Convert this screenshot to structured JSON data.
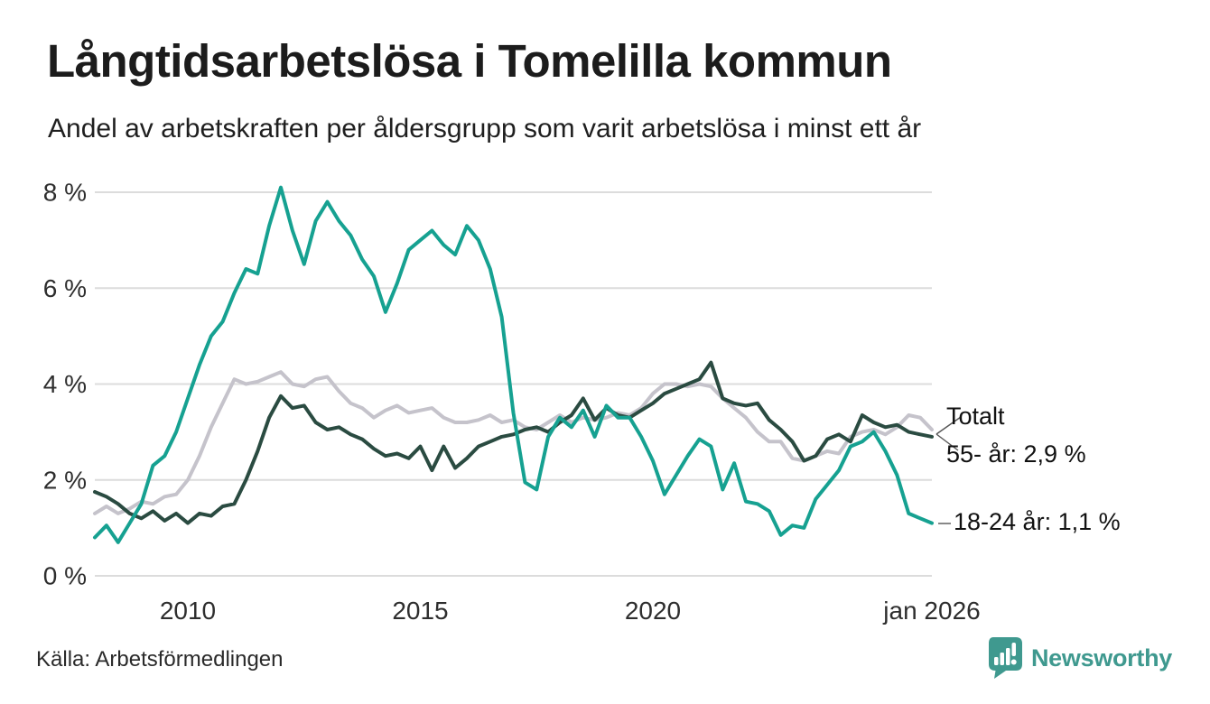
{
  "header": {
    "title": "Långtidsarbetslösa i Tomelilla kommun",
    "subtitle": "Andel av arbetskraften per åldersgrupp som varit arbetslösa i minst ett år"
  },
  "footer": {
    "source": "Källa: Arbetsförmedlingen",
    "brand": "Newsworthy"
  },
  "colors": {
    "teal_line": "#16a191",
    "gray_line": "#c5c3cb",
    "darkgreen_line": "#2a4b41",
    "gridline": "#dcdcdc",
    "tick_text": "#2e2e2e",
    "leader_line": "#555555",
    "brand_teal": "#3f998f"
  },
  "chart_data": {
    "type": "line",
    "title": "Långtidsarbetslösa i Tomelilla kommun",
    "subtitle": "Andel av arbetskraften per åldersgrupp som varit arbetslösa i minst ett år",
    "source": "Källa: Arbetsförmedlingen",
    "xlabel": "",
    "ylabel": "",
    "xlim": [
      2008,
      2026
    ],
    "ylim": [
      0,
      8
    ],
    "grid": "horizontal",
    "legend": "end-labels",
    "yticks": [
      {
        "v": 0,
        "label": "0 %"
      },
      {
        "v": 2,
        "label": "2 %"
      },
      {
        "v": 4,
        "label": "4 %"
      },
      {
        "v": 6,
        "label": "6 %"
      },
      {
        "v": 8,
        "label": "8 %"
      }
    ],
    "xticks": [
      {
        "v": 2010,
        "label": "2010"
      },
      {
        "v": 2015,
        "label": "2015"
      },
      {
        "v": 2020,
        "label": "2020"
      },
      {
        "v": 2026,
        "label": "jan 2026"
      }
    ],
    "x": [
      2008,
      2008.25,
      2008.5,
      2008.75,
      2009,
      2009.25,
      2009.5,
      2009.75,
      2010,
      2010.25,
      2010.5,
      2010.75,
      2011,
      2011.25,
      2011.5,
      2011.75,
      2012,
      2012.25,
      2012.5,
      2012.75,
      2013,
      2013.25,
      2013.5,
      2013.75,
      2014,
      2014.25,
      2014.5,
      2014.75,
      2015,
      2015.25,
      2015.5,
      2015.75,
      2016,
      2016.25,
      2016.5,
      2016.75,
      2017,
      2017.25,
      2017.5,
      2017.75,
      2018,
      2018.25,
      2018.5,
      2018.75,
      2019,
      2019.25,
      2019.5,
      2019.75,
      2020,
      2020.25,
      2020.5,
      2020.75,
      2021,
      2021.25,
      2021.5,
      2021.75,
      2022,
      2022.25,
      2022.5,
      2022.75,
      2023,
      2023.25,
      2023.5,
      2023.75,
      2024,
      2024.25,
      2024.5,
      2024.75,
      2025,
      2025.25,
      2025.5,
      2025.75,
      2026
    ],
    "series": [
      {
        "name": "18-24 år",
        "end_label": "18-24 år: 1,1 %",
        "end_value": 1.1,
        "color": "#16a191",
        "values": [
          0.8,
          1.05,
          0.7,
          1.1,
          1.5,
          2.3,
          2.5,
          3.0,
          3.7,
          4.4,
          5.0,
          5.3,
          5.9,
          6.4,
          6.3,
          7.3,
          8.1,
          7.2,
          6.5,
          7.4,
          7.8,
          7.4,
          7.1,
          6.6,
          6.25,
          5.5,
          6.1,
          6.8,
          7.0,
          7.2,
          6.9,
          6.7,
          7.3,
          7.0,
          6.4,
          5.4,
          3.4,
          1.95,
          1.8,
          2.9,
          3.3,
          3.1,
          3.45,
          2.9,
          3.55,
          3.3,
          3.3,
          2.9,
          2.4,
          1.7,
          2.1,
          2.5,
          2.85,
          2.7,
          1.8,
          2.35,
          1.55,
          1.5,
          1.35,
          0.85,
          1.05,
          1.0,
          1.6,
          1.9,
          2.2,
          2.7,
          2.8,
          3.0,
          2.6,
          2.1,
          1.3,
          1.2,
          1.1
        ]
      },
      {
        "name": "Totalt",
        "end_label": "Totalt",
        "end_value": 3.05,
        "color": "#c5c3cb",
        "values": [
          1.3,
          1.45,
          1.3,
          1.4,
          1.55,
          1.5,
          1.65,
          1.7,
          2.0,
          2.5,
          3.1,
          3.6,
          4.1,
          4.0,
          4.05,
          4.15,
          4.25,
          4.0,
          3.95,
          4.1,
          4.15,
          3.85,
          3.6,
          3.5,
          3.3,
          3.45,
          3.55,
          3.4,
          3.45,
          3.5,
          3.3,
          3.2,
          3.2,
          3.25,
          3.35,
          3.2,
          3.25,
          3.1,
          3.05,
          3.2,
          3.35,
          3.2,
          3.3,
          3.25,
          3.3,
          3.4,
          3.35,
          3.5,
          3.8,
          4.0,
          4.0,
          3.95,
          4.0,
          3.95,
          3.7,
          3.5,
          3.3,
          3.0,
          2.8,
          2.8,
          2.45,
          2.4,
          2.5,
          2.6,
          2.55,
          2.9,
          3.0,
          3.05,
          2.95,
          3.1,
          3.35,
          3.3,
          3.05
        ]
      },
      {
        "name": "55- år",
        "end_label": "55- år: 2,9 %",
        "end_value": 2.9,
        "color": "#2a4b41",
        "values": [
          1.75,
          1.65,
          1.5,
          1.3,
          1.2,
          1.35,
          1.15,
          1.3,
          1.1,
          1.3,
          1.25,
          1.45,
          1.5,
          2.0,
          2.6,
          3.3,
          3.75,
          3.5,
          3.55,
          3.2,
          3.05,
          3.1,
          2.95,
          2.85,
          2.65,
          2.5,
          2.55,
          2.45,
          2.7,
          2.2,
          2.7,
          2.25,
          2.45,
          2.7,
          2.8,
          2.9,
          2.95,
          3.05,
          3.1,
          3.0,
          3.2,
          3.35,
          3.7,
          3.25,
          3.5,
          3.35,
          3.3,
          3.45,
          3.6,
          3.8,
          3.9,
          4.0,
          4.1,
          4.45,
          3.7,
          3.6,
          3.55,
          3.6,
          3.25,
          3.05,
          2.8,
          2.4,
          2.5,
          2.85,
          2.95,
          2.8,
          3.35,
          3.2,
          3.1,
          3.15,
          3.0,
          2.95,
          2.9
        ]
      }
    ]
  }
}
